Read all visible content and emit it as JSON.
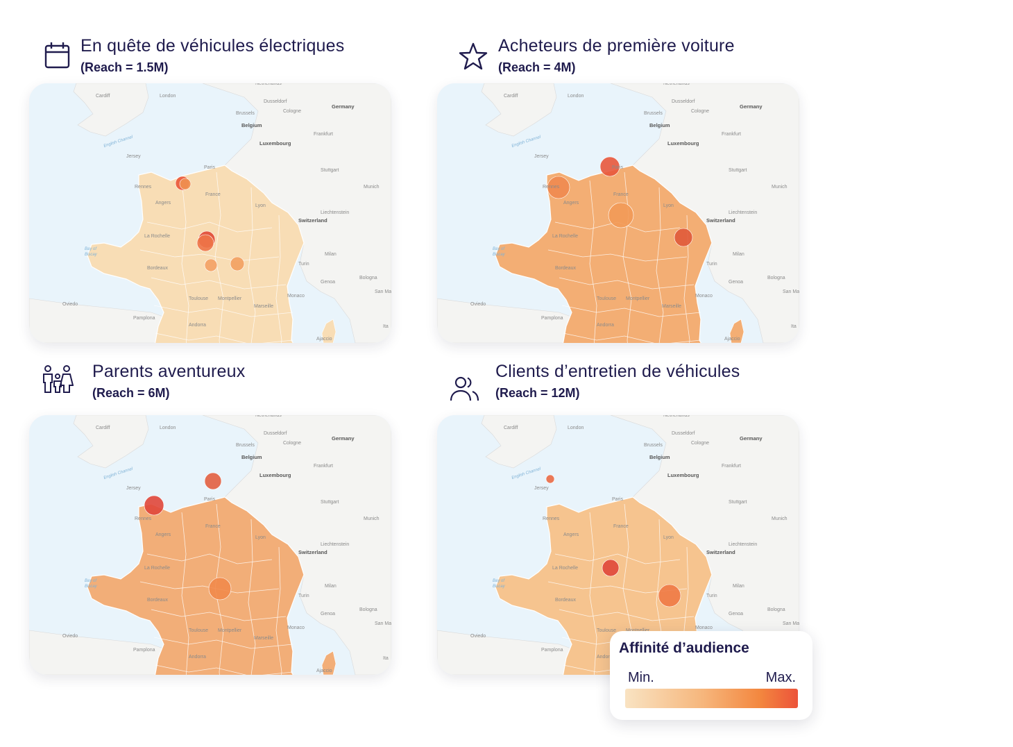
{
  "panels": [
    {
      "title": "En quête de véhicules électriques",
      "reach": "(Reach = 1.5M)",
      "icon": "calendar-icon"
    },
    {
      "title": "Acheteurs de première voiture",
      "reach": "(Reach = 4M)",
      "icon": "star-icon"
    },
    {
      "title": "Parents aventureux",
      "reach": "(Reach = 6M)",
      "icon": "family-icon"
    },
    {
      "title": "Clients d’entretien de véhicules",
      "reach": "(Reach = 12M)",
      "icon": "users-icon"
    }
  ],
  "map_labels": {
    "london": "London",
    "cardiff": "Cardiff",
    "brussels": "Brussels",
    "cologne": "Cologne",
    "dusseldorf": "Dusseldorf",
    "germany": "Germany",
    "belgium": "Belgium",
    "frankfurt": "Frankfurt",
    "luxembourg": "Luxembourg",
    "paris": "Paris",
    "france": "France",
    "jersey": "Jersey",
    "stuttgart": "Stuttgart",
    "munich": "Munich",
    "liechtenstein": "Liechtenstein",
    "switzerland": "Switzerland",
    "english_channel": "English Channel",
    "bay_of_biscay_1": "Bay of",
    "bay_of_biscay_2": "Biscay",
    "turin": "Turin",
    "milan": "Milan",
    "genoa": "Genoa",
    "bologna": "Bologna",
    "monaco": "Monaco",
    "marseille": "Marseille",
    "montpellier": "Montpellier",
    "toulouse": "Toulouse",
    "bordeaux": "Bordeaux",
    "la_rochelle": "La Rochelle",
    "rennes": "Rennes",
    "angers": "Angers",
    "lyon": "Lyon",
    "andorra": "Andorra",
    "pamplona": "Pamplona",
    "oviedo": "Oviedo",
    "san_marino": "San Ma",
    "italy": "Ita",
    "ajaccio": "Ajaccio",
    "netherlands": "Netherlands"
  },
  "legend": {
    "title": "Affinité d’audience",
    "min_label": "Min.",
    "max_label": "Max.",
    "colors": [
      "#f9e3c2",
      "#f6b67c",
      "#f3873f",
      "#ec533a"
    ]
  },
  "colors": {
    "sea": "#e9f4fb",
    "land": "#f4f4f2",
    "text": "#1f1b4d"
  }
}
